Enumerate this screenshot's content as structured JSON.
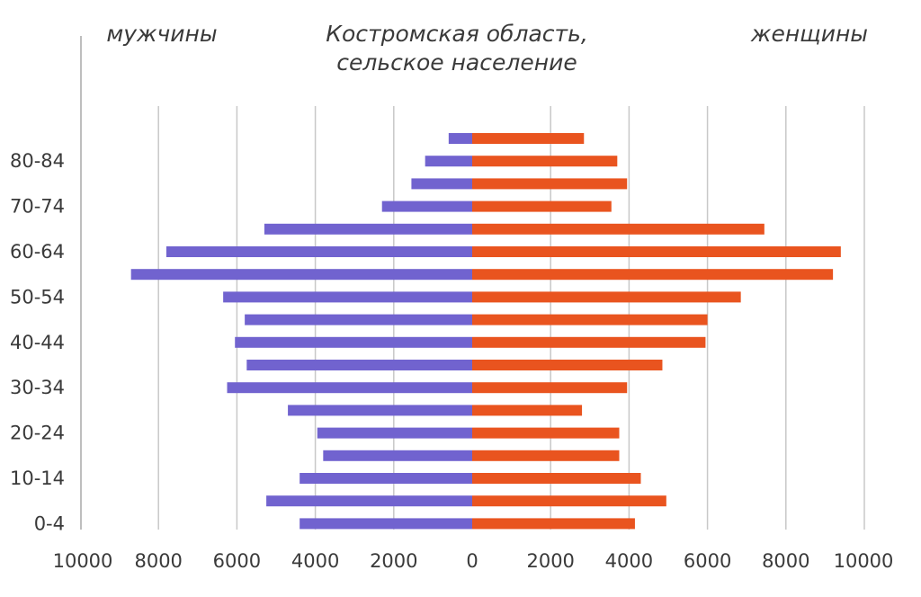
{
  "chart_data": {
    "type": "bar",
    "title": [
      "Костромская область,",
      "сельское население"
    ],
    "left_label": "мужчины",
    "right_label": "женщины",
    "xlim": [
      -10000,
      10000
    ],
    "x_ticks": [
      {
        "value": -10000,
        "label": "10000"
      },
      {
        "value": -8000,
        "label": "8000"
      },
      {
        "value": -6000,
        "label": "6000"
      },
      {
        "value": -4000,
        "label": "4000"
      },
      {
        "value": -2000,
        "label": "2000"
      },
      {
        "value": 0,
        "label": "0"
      },
      {
        "value": 2000,
        "label": "2000"
      },
      {
        "value": 4000,
        "label": "4000"
      },
      {
        "value": 6000,
        "label": "6000"
      },
      {
        "value": 8000,
        "label": "8000"
      },
      {
        "value": 10000,
        "label": "10000"
      }
    ],
    "categories": [
      "0-4",
      "5-9",
      "10-14",
      "15-19",
      "20-24",
      "25-29",
      "30-34",
      "35-39",
      "40-44",
      "45-49",
      "50-54",
      "55-59",
      "60-64",
      "65-69",
      "70-74",
      "75-79",
      "80-84",
      "85+"
    ],
    "y_tick_labels": [
      "0-4",
      "10-14",
      "20-24",
      "30-34",
      "40-44",
      "50-54",
      "60-64",
      "70-74",
      "80-84"
    ],
    "series": [
      {
        "name": "мужчины",
        "color": "#7163cf",
        "values": [
          4400,
          5250,
          4400,
          3800,
          3950,
          4700,
          6250,
          5750,
          6050,
          5800,
          6350,
          8700,
          7800,
          5300,
          2300,
          1550,
          1200,
          600
        ]
      },
      {
        "name": "женщины",
        "color": "#e9541f",
        "values": [
          4150,
          4950,
          4300,
          3750,
          3750,
          2800,
          3950,
          4850,
          5950,
          6000,
          6850,
          9200,
          9400,
          7450,
          3550,
          3950,
          3700,
          2850
        ]
      }
    ],
    "grid": true
  }
}
